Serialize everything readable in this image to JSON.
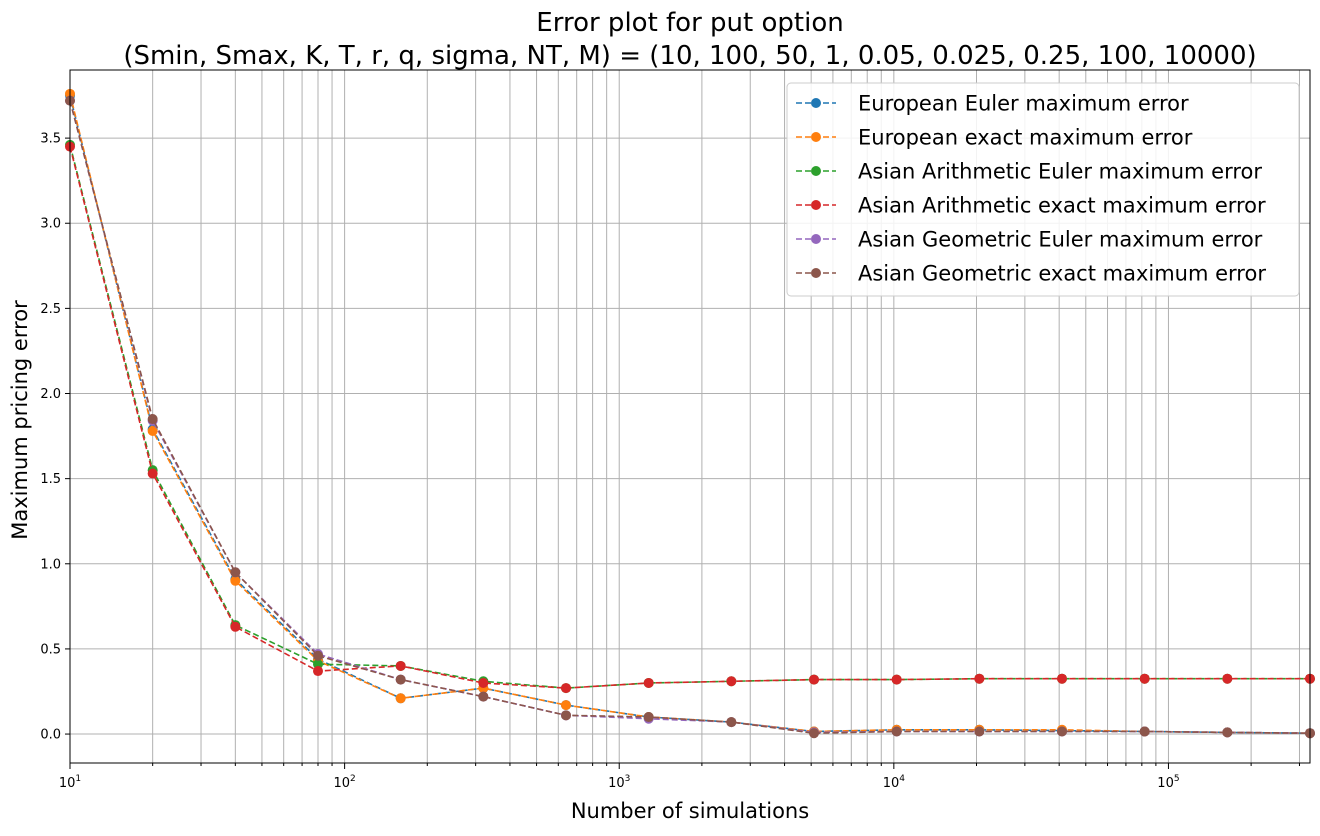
{
  "chart_data": {
    "type": "line",
    "title_line1": "Error plot for put option",
    "title_line2": "(Smin, Smax, K, T, r, q, sigma, NT, M) = (10, 100, 50, 1, 0.05, 0.025, 0.25, 100, 10000)",
    "xlabel": "Number of simulations",
    "ylabel": "Maximum pricing error",
    "xscale": "log",
    "xlim": [
      10,
      327680
    ],
    "ylim": [
      -0.17,
      3.9
    ],
    "grid": "both",
    "legend_placement": "top-right",
    "x_tick_values": [
      10,
      100,
      1000,
      10000,
      100000
    ],
    "x_tick_base": "10",
    "x_tick_exponents": [
      "1",
      "2",
      "3",
      "4",
      "5"
    ],
    "y_ticks": [
      0.0,
      0.5,
      1.0,
      1.5,
      2.0,
      2.5,
      3.0,
      3.5
    ],
    "y_tick_labels": [
      "0.0",
      "0.5",
      "1.0",
      "1.5",
      "2.0",
      "2.5",
      "3.0",
      "3.5"
    ],
    "x": [
      10,
      20,
      40,
      80,
      160,
      320,
      640,
      1280,
      2560,
      5120,
      10240,
      20480,
      40960,
      81920,
      163840,
      327680
    ],
    "series": [
      {
        "name": "European Euler maximum error",
        "color": "#1f77b4",
        "values": [
          3.75,
          1.79,
          0.91,
          0.44,
          0.21,
          0.27,
          0.17,
          0.1,
          0.07,
          0.015,
          0.025,
          0.025,
          0.02,
          0.015,
          0.01,
          0.005
        ]
      },
      {
        "name": "European exact maximum error",
        "color": "#ff7f0e",
        "values": [
          3.76,
          1.78,
          0.9,
          0.43,
          0.21,
          0.27,
          0.17,
          0.1,
          0.07,
          0.015,
          0.025,
          0.025,
          0.025,
          0.015,
          0.01,
          0.005
        ]
      },
      {
        "name": "Asian Arithmetic Euler maximum error",
        "color": "#2ca02c",
        "values": [
          3.46,
          1.55,
          0.64,
          0.41,
          0.4,
          0.31,
          0.27,
          0.3,
          0.31,
          0.32,
          0.32,
          0.325,
          0.325,
          0.325,
          0.325,
          0.325
        ]
      },
      {
        "name": "Asian Arithmetic exact maximum error",
        "color": "#d62728",
        "values": [
          3.45,
          1.53,
          0.63,
          0.37,
          0.4,
          0.3,
          0.27,
          0.3,
          0.31,
          0.32,
          0.32,
          0.325,
          0.325,
          0.325,
          0.325,
          0.325
        ]
      },
      {
        "name": "Asian Geometric Euler maximum error",
        "color": "#9467bd",
        "values": [
          3.72,
          1.84,
          0.95,
          0.47,
          0.32,
          0.22,
          0.11,
          0.09,
          0.07,
          0.01,
          0.015,
          0.015,
          0.015,
          0.015,
          0.01,
          0.005
        ]
      },
      {
        "name": "Asian Geometric exact maximum error",
        "color": "#8c564b",
        "values": [
          3.72,
          1.85,
          0.95,
          0.46,
          0.32,
          0.22,
          0.11,
          0.1,
          0.07,
          0.005,
          0.015,
          0.015,
          0.015,
          0.015,
          0.01,
          0.005
        ]
      }
    ]
  }
}
